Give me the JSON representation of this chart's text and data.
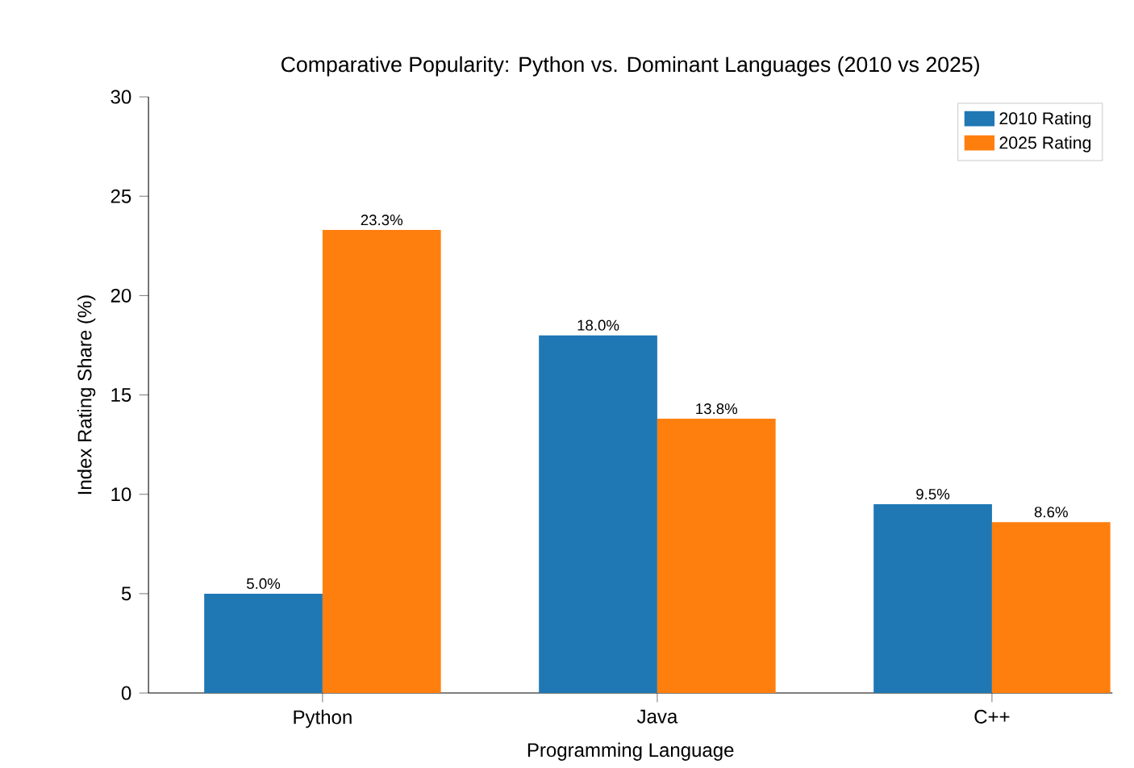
{
  "chart_data": {
    "type": "bar",
    "title": "Comparative Popularity: Python vs. Dominant Languages (2010 vs 2025)",
    "xlabel": "Programming Language",
    "ylabel": "Index Rating Share (%)",
    "categories": [
      "Python",
      "Java",
      "C++"
    ],
    "series": [
      {
        "name": "2010 Rating",
        "color": "#1f77b4",
        "values": [
          5.0,
          18.0,
          9.5
        ],
        "value_labels": [
          "5.0%",
          "18.0%",
          "9.5%"
        ]
      },
      {
        "name": "2025 Rating",
        "color": "#ff7f0e",
        "values": [
          23.3,
          13.8,
          8.6
        ],
        "value_labels": [
          "23.3%",
          "13.8%",
          "8.6%"
        ]
      }
    ],
    "ylim": [
      0,
      30
    ],
    "yticks": [
      0,
      5,
      10,
      15,
      20,
      25,
      30
    ],
    "grid": false,
    "legend": "top right"
  }
}
